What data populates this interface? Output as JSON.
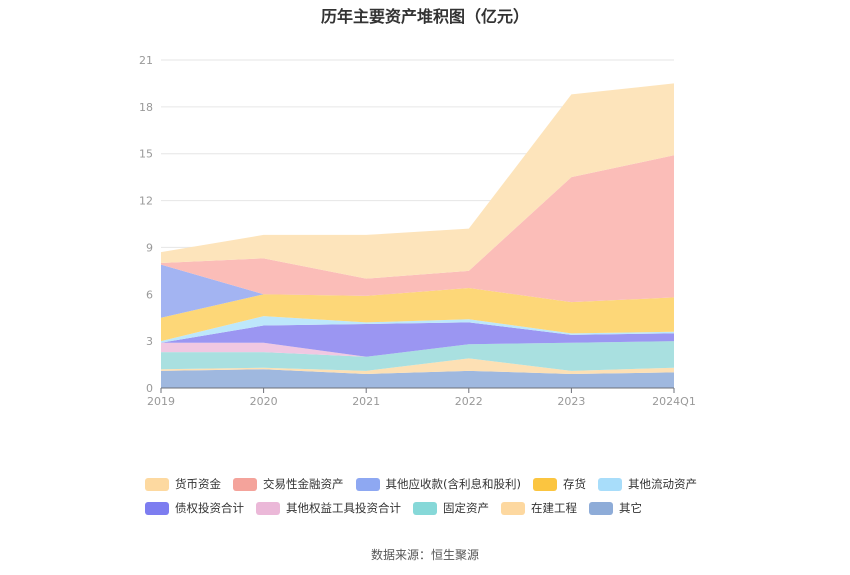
{
  "chart_data": {
    "type": "area",
    "stacked": true,
    "title": "历年主要资产堆积图（亿元）",
    "categories": [
      "2019",
      "2020",
      "2021",
      "2022",
      "2023",
      "2024Q1"
    ],
    "y_ticks": [
      "0",
      "3",
      "6",
      "9",
      "12",
      "15",
      "18",
      "21"
    ],
    "ylim": [
      0,
      21
    ],
    "grid": true,
    "legend_position": "bottom",
    "series": [
      {
        "name": "其它",
        "color": "#9fb8df",
        "values": [
          1.1,
          1.2,
          0.9,
          1.1,
          0.9,
          1.0
        ]
      },
      {
        "name": "在建工程",
        "color": "#fde0b4",
        "values": [
          0.1,
          0.1,
          0.2,
          0.8,
          0.2,
          0.3
        ]
      },
      {
        "name": "固定资产",
        "color": "#a9e0e0",
        "values": [
          1.1,
          1.0,
          0.9,
          0.9,
          1.8,
          1.7
        ]
      },
      {
        "name": "其他权益工具投资合计",
        "color": "#f0c8e2",
        "values": [
          0.6,
          0.6,
          0.0,
          0.0,
          0.0,
          0.0
        ]
      },
      {
        "name": "债权投资合计",
        "color": "#9b96f2",
        "values": [
          0.0,
          1.1,
          2.1,
          1.4,
          0.5,
          0.5
        ]
      },
      {
        "name": "其他流动资产",
        "color": "#bde7fb",
        "values": [
          0.1,
          0.6,
          0.1,
          0.2,
          0.1,
          0.1
        ]
      },
      {
        "name": "存货",
        "color": "#fdd778",
        "values": [
          1.5,
          1.4,
          1.7,
          2.0,
          2.0,
          2.2
        ]
      },
      {
        "name": "其他应收款(含利息和股利)",
        "color": "#a3b4f2",
        "values": [
          3.4,
          0.0,
          0.0,
          0.0,
          0.0,
          0.0
        ]
      },
      {
        "name": "交易性金融资产",
        "color": "#fbbdb8",
        "values": [
          0.1,
          2.3,
          1.1,
          1.1,
          8.0,
          9.1
        ]
      },
      {
        "name": "货币资金",
        "color": "#fde4bb",
        "values": [
          0.7,
          1.5,
          2.8,
          2.7,
          5.3,
          4.6
        ]
      }
    ]
  },
  "legend": {
    "row1": [
      {
        "label": "货币资金",
        "color": "#fdd9a0"
      },
      {
        "label": "交易性金融资产",
        "color": "#f4a39b"
      },
      {
        "label": "其他应收款(含利息和股利)",
        "color": "#8ea8f2"
      },
      {
        "label": "存货",
        "color": "#fbc540"
      },
      {
        "label": "其他流动资产",
        "color": "#a8ddfa"
      }
    ],
    "row2": [
      {
        "label": "债权投资合计",
        "color": "#7d7df0"
      },
      {
        "label": "其他权益工具投资合计",
        "color": "#ebb8d8"
      },
      {
        "label": "固定资产",
        "color": "#86d8d8"
      },
      {
        "label": "在建工程",
        "color": "#fdd8a0"
      },
      {
        "label": "其它",
        "color": "#8eacd8"
      }
    ]
  },
  "source": "数据来源：恒生聚源"
}
